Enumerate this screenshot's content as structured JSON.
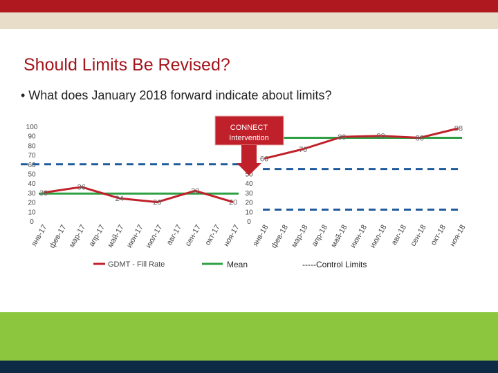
{
  "colors": {
    "top_bar": "#b01820",
    "tan_bar": "#e8ddc9",
    "green_bar": "#8cc63f",
    "bottom_bar": "#0d2b45",
    "title": "#a3141b",
    "line": "#c0202a",
    "mean": "#2ea043",
    "control": "#1f5b9c",
    "callout": "#c0202a"
  },
  "slide": {
    "title": "Should Limits Be Revised?",
    "bullet": "• What does January 2018 forward indicate about limits?"
  },
  "chart_data": [
    {
      "type": "line",
      "categories": [
        "янв-17",
        "фев-17",
        "мар-17",
        "апр-17",
        "май-17",
        "июн-17",
        "июл-17",
        "авг-17",
        "сен-17",
        "окт-17",
        "ноя-17"
      ],
      "series": [
        {
          "name": "GDMT - Fill Rate",
          "values": [
            30,
            null,
            36,
            null,
            24,
            null,
            20,
            null,
            32,
            null,
            20
          ],
          "data_labels": [
            "30",
            "",
            "36",
            "",
            "24",
            "",
            "20",
            "",
            "32",
            "",
            "20"
          ]
        },
        {
          "name": "Mean",
          "values": [
            29,
            29,
            29,
            29,
            29,
            29,
            29,
            29,
            29,
            29,
            29
          ]
        },
        {
          "name": "Control Limits",
          "values_upper": [
            60,
            60,
            60,
            60,
            60,
            60,
            60,
            60,
            60,
            60,
            60
          ],
          "values_lower": [
            0,
            0,
            0,
            0,
            0,
            0,
            0,
            0,
            0,
            0,
            0
          ]
        }
      ],
      "y_ticks": [
        "100",
        "90",
        "80",
        "70",
        "60",
        "50",
        "40",
        "30",
        "20",
        "10",
        "0"
      ],
      "ylim": [
        0,
        100
      ]
    },
    {
      "type": "line",
      "categories": [
        "янв-18",
        "фев-18",
        "мар-18",
        "апр-18",
        "май-18",
        "июн-18",
        "июл-18",
        "авг-18",
        "сен-18",
        "окт-18",
        "ноя-18"
      ],
      "series": [
        {
          "name": "GDMT - Fill Rate",
          "values": [
            66,
            null,
            76,
            null,
            89,
            null,
            90,
            null,
            88,
            null,
            98
          ],
          "data_labels": [
            "66",
            "",
            "76",
            "",
            "89",
            "",
            "90",
            "",
            "88",
            "",
            "98"
          ]
        },
        {
          "name": "Mean",
          "values": [
            88,
            88,
            88,
            88,
            88,
            88,
            88,
            88,
            88,
            88,
            88
          ]
        },
        {
          "name": "Control Limits",
          "values_upper": [
            55,
            55,
            55,
            55,
            55,
            55,
            55,
            55,
            55,
            55,
            55
          ],
          "values_lower": [
            12,
            12,
            12,
            12,
            12,
            12,
            12,
            12,
            12,
            12,
            12
          ]
        }
      ],
      "y_ticks": [
        "50",
        "40",
        "30",
        "20",
        "10",
        "0"
      ],
      "ylim": [
        0,
        100
      ]
    }
  ],
  "callout": {
    "line1": "CONNECT",
    "line2": "Intervention"
  },
  "legend": {
    "series": "GDMT - Fill Rate",
    "mean": "Mean",
    "control": "-----Control Limits"
  }
}
